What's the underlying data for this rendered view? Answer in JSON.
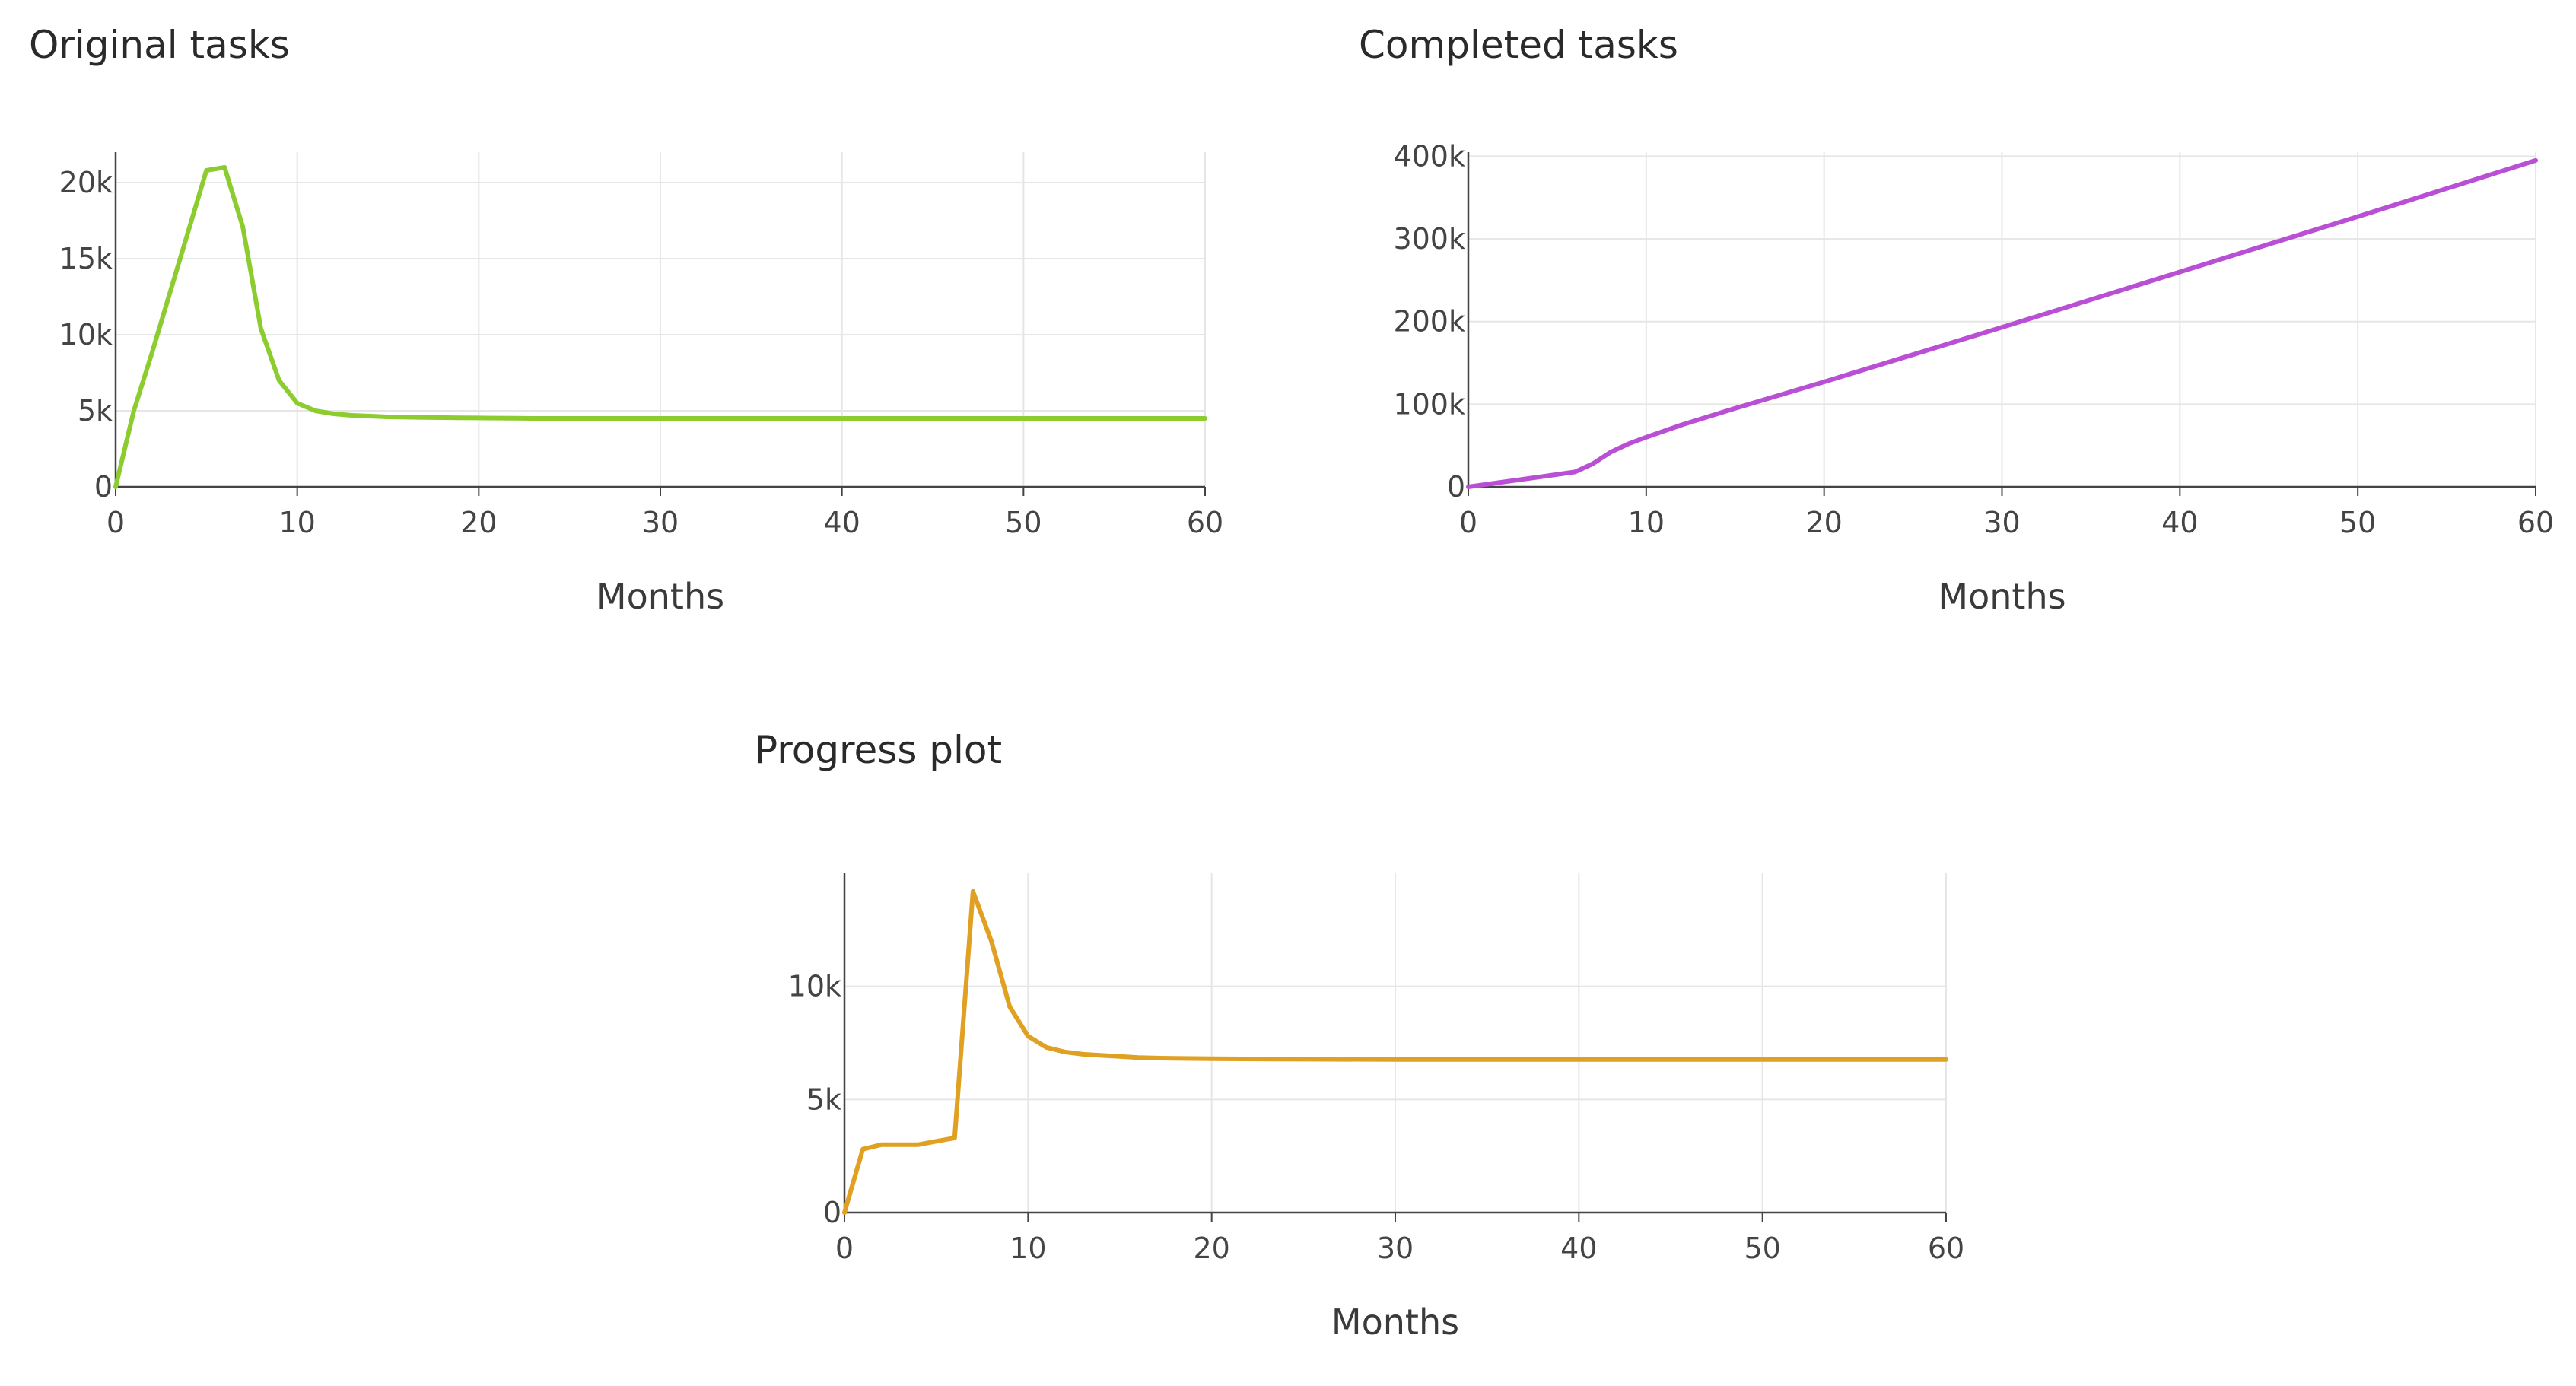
{
  "charts": {
    "original": {
      "chart_data": {
        "type": "line",
        "title": "Original tasks",
        "xlabel": "Months",
        "ylabel": "",
        "xlim": [
          0,
          60
        ],
        "ylim": [
          0,
          22000
        ],
        "x_ticks": [
          0,
          10,
          20,
          30,
          40,
          50,
          60
        ],
        "y_ticks": [
          0,
          5000,
          10000,
          15000,
          20000
        ],
        "y_tick_labels": [
          "0",
          "5k",
          "10k",
          "15k",
          "20k"
        ],
        "grid": true,
        "color": "#8dcc2f",
        "series": [
          {
            "x": [
              0,
              1,
              2,
              3,
              4,
              5,
              6,
              7,
              8,
              9,
              10,
              11,
              12,
              13,
              14,
              15,
              16,
              17,
              18,
              19,
              20,
              21,
              22,
              23,
              24,
              25,
              26,
              27,
              28,
              29,
              30,
              31,
              32,
              33,
              34,
              35,
              36,
              37,
              38,
              39,
              40,
              41,
              42,
              43,
              44,
              45,
              46,
              47,
              48,
              49,
              50,
              51,
              52,
              53,
              54,
              55,
              56,
              57,
              58,
              59,
              60
            ],
            "values": [
              0,
              5000,
              8800,
              12800,
              16800,
              20800,
              21000,
              17100,
              10400,
              7000,
              5500,
              5000,
              4800,
              4700,
              4650,
              4600,
              4580,
              4560,
              4550,
              4540,
              4530,
              4520,
              4510,
              4500,
              4500,
              4500,
              4500,
              4500,
              4500,
              4500,
              4500,
              4500,
              4500,
              4500,
              4500,
              4500,
              4500,
              4500,
              4500,
              4500,
              4500,
              4500,
              4500,
              4500,
              4500,
              4500,
              4500,
              4500,
              4500,
              4500,
              4500,
              4500,
              4500,
              4500,
              4500,
              4500,
              4500,
              4500,
              4500,
              4500,
              4500
            ]
          }
        ]
      }
    },
    "completed": {
      "chart_data": {
        "type": "line",
        "title": "Completed tasks",
        "xlabel": "Months",
        "ylabel": "",
        "xlim": [
          0,
          60
        ],
        "ylim": [
          0,
          405000
        ],
        "x_ticks": [
          0,
          10,
          20,
          30,
          40,
          50,
          60
        ],
        "y_ticks": [
          0,
          100000,
          200000,
          300000,
          400000
        ],
        "y_tick_labels": [
          "0",
          "100k",
          "200k",
          "300k",
          "400k"
        ],
        "grid": true,
        "color": "#b94fd4",
        "series": [
          {
            "x": [
              0,
              2,
              4,
              6,
              7,
              8,
              9,
              10,
              12,
              15,
              20,
              30,
              40,
              50,
              60
            ],
            "values": [
              0,
              6000,
              12000,
              18000,
              28000,
              42000,
              52000,
              60000,
              75000,
              95000,
              127000,
              193000,
              260000,
              327000,
              395000
            ]
          }
        ]
      }
    },
    "progress": {
      "chart_data": {
        "type": "line",
        "title": "Progress plot",
        "xlabel": "Months",
        "ylabel": "",
        "xlim": [
          0,
          60
        ],
        "ylim": [
          0,
          15000
        ],
        "x_ticks": [
          0,
          10,
          20,
          30,
          40,
          50,
          60
        ],
        "y_ticks": [
          0,
          5000,
          10000
        ],
        "y_tick_labels": [
          "0",
          "5k",
          "10k"
        ],
        "grid": true,
        "color": "#e0a021",
        "series": [
          {
            "x": [
              0,
              1,
              2,
              3,
              4,
              5,
              6,
              7,
              8,
              9,
              10,
              11,
              12,
              13,
              14,
              15,
              16,
              17,
              18,
              19,
              20,
              25,
              30,
              35,
              40,
              45,
              50,
              55,
              60
            ],
            "values": [
              0,
              2800,
              3000,
              3000,
              3000,
              3150,
              3300,
              14200,
              12000,
              9100,
              7800,
              7300,
              7100,
              7000,
              6950,
              6900,
              6850,
              6830,
              6820,
              6810,
              6800,
              6780,
              6770,
              6770,
              6770,
              6770,
              6770,
              6770,
              6770
            ]
          }
        ]
      }
    }
  }
}
